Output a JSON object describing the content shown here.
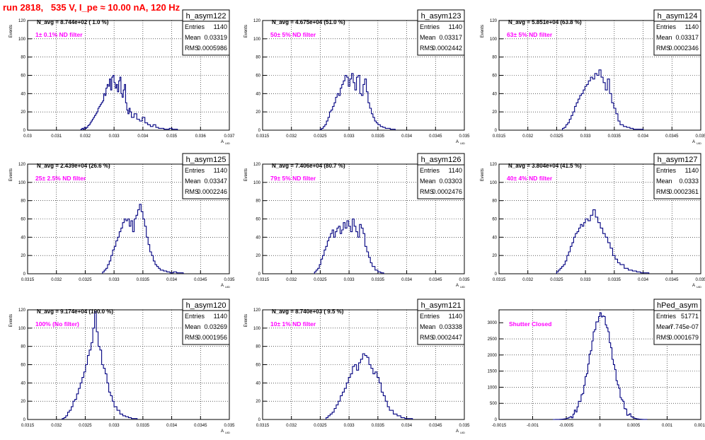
{
  "header": {
    "title": "run 2818,   535 V, I_pe ≈ 10.00 nA, 120 Hz"
  },
  "colors": {
    "histogram": "#000080",
    "annotation": "#ff00ff",
    "title": "#ff0000",
    "grid": "#000000"
  },
  "chart_data": [
    {
      "type": "histogram",
      "name": "h_asym122",
      "navg": "N_avg = 8.744e+02 ( 1.0 %)",
      "filter": "1± 0.1% ND filter",
      "stats": [
        [
          "Entries",
          "1140"
        ],
        [
          "Mean",
          "0.03319"
        ],
        [
          "RMS",
          "0.0005986"
        ]
      ],
      "ylabel": "Events",
      "xlabel": "A_UID",
      "xlim": [
        0.03,
        0.037
      ],
      "ylim": [
        0,
        120
      ],
      "xticks": [
        0.03,
        0.031,
        0.032,
        0.033,
        0.034,
        0.035,
        0.036,
        0.037
      ],
      "xtick_labels": [
        "0.03",
        "0.031",
        "0.032",
        "0.033",
        "0.034",
        "0.035",
        "0.036",
        "0.037"
      ],
      "yticks": [
        0,
        20,
        40,
        60,
        80,
        100,
        120
      ],
      "bins": [
        [
          0.03185,
          0.0326,
          [
            1,
            2,
            1,
            3,
            2,
            3,
            5,
            6,
            8,
            10,
            12,
            14,
            16,
            18,
            20,
            24,
            26,
            28,
            30
          ]
        ],
        [
          0.0326,
          0.0336,
          [
            32,
            40,
            38,
            46,
            50,
            48,
            56,
            44,
            58,
            60,
            52,
            46,
            50,
            42,
            54,
            58,
            40,
            36,
            44,
            50,
            30,
            22,
            18,
            24,
            20
          ]
        ],
        [
          0.0336,
          0.0352,
          [
            14,
            18,
            12,
            10,
            14,
            8,
            6,
            4,
            6,
            3,
            2,
            2,
            1,
            1,
            2,
            1,
            1
          ]
        ]
      ]
    },
    {
      "type": "histogram",
      "name": "h_asym123",
      "navg": "N_avg = 4.675e+04 (51.0 %)",
      "filter": "50± 5% ND filter",
      "stats": [
        [
          "Entries",
          "1140"
        ],
        [
          "Mean",
          "0.03317"
        ],
        [
          "RMS",
          "0.0002442"
        ]
      ],
      "ylabel": "Events",
      "xlabel": "A_UID",
      "xlim": [
        0.0315,
        0.035
      ],
      "ylim": [
        0,
        120
      ],
      "xticks": [
        0.0315,
        0.032,
        0.0325,
        0.033,
        0.0335,
        0.034,
        0.0345,
        0.035
      ],
      "xtick_labels": [
        "0.0315",
        "0.032",
        "0.0325",
        "0.033",
        "0.0335",
        "0.034",
        "0.0345",
        "0.035"
      ],
      "yticks": [
        0,
        20,
        40,
        60,
        80,
        100,
        120
      ],
      "bins": [
        [
          0.0325,
          0.0329,
          [
            1,
            2,
            4,
            6,
            10,
            14,
            20,
            22,
            26,
            30,
            36,
            40,
            38,
            46,
            50
          ]
        ],
        [
          0.0329,
          0.0335,
          [
            54,
            60,
            58,
            48,
            56,
            62,
            52,
            44,
            58,
            60,
            40,
            38,
            50,
            56,
            42,
            30,
            24,
            18,
            14,
            10,
            8
          ]
        ],
        [
          0.0335,
          0.0338,
          [
            6,
            4,
            3,
            2,
            2,
            1,
            1
          ]
        ]
      ]
    },
    {
      "type": "histogram",
      "name": "h_asym124",
      "navg": "N_avg = 5.851e+04 (63.8 %)",
      "filter": "63± 5% ND filter",
      "stats": [
        [
          "Entries",
          "1140"
        ],
        [
          "Mean",
          "0.03317"
        ],
        [
          "RMS",
          "0.0002346"
        ]
      ],
      "ylabel": "Events",
      "xlabel": "A_UID",
      "xlim": [
        0.0315,
        0.035
      ],
      "ylim": [
        0,
        120
      ],
      "xticks": [
        0.0315,
        0.032,
        0.0325,
        0.033,
        0.0335,
        0.034,
        0.0345,
        0.035
      ],
      "xtick_labels": [
        "0.0315",
        "0.032",
        "0.0325",
        "0.033",
        "0.0335",
        "0.034",
        "0.0345",
        "0.035"
      ],
      "yticks": [
        0,
        20,
        40,
        60,
        80,
        100,
        120
      ],
      "bins": [
        [
          0.0326,
          0.03305,
          [
            2,
            3,
            6,
            8,
            12,
            16,
            20,
            26,
            30,
            34,
            38,
            40,
            44,
            48,
            50
          ]
        ],
        [
          0.03305,
          0.0336,
          [
            54,
            58,
            56,
            62,
            60,
            66,
            58,
            52,
            44,
            56,
            40,
            30,
            24,
            18,
            10
          ]
        ],
        [
          0.0336,
          0.034,
          [
            6,
            4,
            3,
            2,
            1,
            1,
            1
          ]
        ]
      ]
    },
    {
      "type": "histogram",
      "name": "h_asym125",
      "navg": "N_avg = 2.439e+04 (26.6 %)",
      "filter": "25± 2.5% ND filter",
      "stats": [
        [
          "Entries",
          "1140"
        ],
        [
          "Mean",
          "0.03347"
        ],
        [
          "RMS",
          "0.0002246"
        ]
      ],
      "ylabel": "Events",
      "xlabel": "A_UID",
      "xlim": [
        0.0315,
        0.035
      ],
      "ylim": [
        0,
        120
      ],
      "xticks": [
        0.0315,
        0.032,
        0.0325,
        0.033,
        0.0335,
        0.034,
        0.0345,
        0.035
      ],
      "xtick_labels": [
        "0.0315",
        "0.032",
        "0.0325",
        "0.033",
        "0.0335",
        "0.034",
        "0.0345",
        "0.035"
      ],
      "yticks": [
        0,
        20,
        40,
        60,
        80,
        100,
        120
      ],
      "bins": [
        [
          0.0328,
          0.03335,
          [
            2,
            4,
            6,
            10,
            14,
            20,
            26,
            30,
            36,
            40,
            46,
            50,
            56,
            60,
            58,
            60,
            52,
            58,
            46
          ]
        ],
        [
          0.03335,
          0.0338,
          [
            60,
            64,
            70,
            76,
            68,
            60,
            52,
            40,
            32,
            24,
            20,
            14,
            10,
            8,
            6
          ]
        ],
        [
          0.0338,
          0.0342,
          [
            4,
            3,
            2,
            1,
            2,
            1,
            1
          ]
        ]
      ]
    },
    {
      "type": "histogram",
      "name": "h_asym126",
      "navg": "N_avg = 7.406e+04 (80.7 %)",
      "filter": "79± 5% ND filter",
      "stats": [
        [
          "Entries",
          "1140"
        ],
        [
          "Mean",
          "0.03303"
        ],
        [
          "RMS",
          "0.0002476"
        ]
      ],
      "ylabel": "Events",
      "xlabel": "A_UID",
      "xlim": [
        0.0315,
        0.035
      ],
      "ylim": [
        0,
        120
      ],
      "xticks": [
        0.0315,
        0.032,
        0.0325,
        0.033,
        0.0335,
        0.034,
        0.0345,
        0.035
      ],
      "xtick_labels": [
        "0.0315",
        "0.032",
        "0.0325",
        "0.033",
        "0.0335",
        "0.034",
        "0.0345",
        "0.035"
      ],
      "yticks": [
        0,
        20,
        40,
        60,
        80,
        100,
        120
      ],
      "bins": [
        [
          0.0324,
          0.0329,
          [
            2,
            4,
            6,
            10,
            16,
            20,
            26,
            30,
            36,
            40,
            44,
            48,
            40,
            46,
            50,
            52,
            44,
            48
          ]
        ],
        [
          0.0329,
          0.0334,
          [
            56,
            50,
            58,
            52,
            46,
            60,
            52,
            46,
            40,
            54,
            50,
            44,
            30,
            24,
            18,
            12
          ]
        ],
        [
          0.0334,
          0.0336,
          [
            8,
            4,
            2,
            1
          ]
        ]
      ]
    },
    {
      "type": "histogram",
      "name": "h_asym127",
      "navg": "N_avg = 3.804e+04 (41.5 %)",
      "filter": "40± 4% ND filter",
      "stats": [
        [
          "Entries",
          "1140"
        ],
        [
          "Mean",
          "0.0333"
        ],
        [
          "RMS",
          "0.0002361"
        ]
      ],
      "ylabel": "Events",
      "xlabel": "A_UID",
      "xlim": [
        0.0315,
        0.035
      ],
      "ylim": [
        0,
        120
      ],
      "xticks": [
        0.0315,
        0.032,
        0.0325,
        0.033,
        0.0335,
        0.034,
        0.0345,
        0.035
      ],
      "xtick_labels": [
        "0.0315",
        "0.032",
        "0.0325",
        "0.033",
        "0.0335",
        "0.034",
        "0.0345",
        "0.035"
      ],
      "yticks": [
        0,
        20,
        40,
        60,
        80,
        100,
        120
      ],
      "bins": [
        [
          0.0325,
          0.033,
          [
            2,
            4,
            6,
            8,
            10,
            14,
            20,
            24,
            30,
            34,
            40,
            44,
            46,
            50,
            54,
            52,
            56
          ]
        ],
        [
          0.033,
          0.0336,
          [
            60,
            58,
            64,
            70,
            62,
            56,
            50,
            44,
            40,
            34,
            28,
            20,
            16,
            12
          ]
        ],
        [
          0.0336,
          0.0341,
          [
            10,
            6,
            4,
            3,
            2,
            1,
            1
          ]
        ]
      ]
    },
    {
      "type": "histogram",
      "name": "h_asym120",
      "navg": "N_avg = 9.174e+04 (100.0 %)",
      "filter": "100% (No filter)",
      "stats": [
        [
          "Entries",
          "1140"
        ],
        [
          "Mean",
          "0.03269"
        ],
        [
          "RMS",
          "0.0001956"
        ]
      ],
      "ylabel": "Events",
      "xlabel": "A_UID",
      "xlim": [
        0.0315,
        0.035
      ],
      "ylim": [
        0,
        120
      ],
      "xticks": [
        0.0315,
        0.032,
        0.0325,
        0.033,
        0.0335,
        0.034,
        0.0345,
        0.035
      ],
      "xtick_labels": [
        "0.0315",
        "0.032",
        "0.0325",
        "0.033",
        "0.0335",
        "0.034",
        "0.0345",
        "0.035"
      ],
      "yticks": [
        0,
        20,
        40,
        60,
        80,
        100,
        120
      ],
      "bins": [
        [
          0.0321,
          0.0326,
          [
            1,
            2,
            4,
            8,
            10,
            14,
            20,
            22,
            28,
            34,
            40,
            46,
            52,
            60,
            70,
            76
          ]
        ],
        [
          0.0326,
          0.033,
          [
            84,
            100,
            118,
            96,
            80,
            76,
            60,
            56,
            50,
            40,
            30,
            26,
            20
          ]
        ],
        [
          0.033,
          0.0334,
          [
            14,
            10,
            6,
            4,
            3,
            2,
            1,
            1
          ]
        ]
      ]
    },
    {
      "type": "histogram",
      "name": "h_asym121",
      "navg": "N_avg = 8.740e+03 ( 9.5 %)",
      "filter": "10± 1% ND filter",
      "stats": [
        [
          "Entries",
          "1140"
        ],
        [
          "Mean",
          "0.03338"
        ],
        [
          "RMS",
          "0.0002447"
        ]
      ],
      "ylabel": "Events",
      "xlabel": "A_UID",
      "xlim": [
        0.0315,
        0.035
      ],
      "ylim": [
        0,
        120
      ],
      "xticks": [
        0.0315,
        0.032,
        0.0325,
        0.033,
        0.0335,
        0.034,
        0.0345,
        0.035
      ],
      "xtick_labels": [
        "0.0315",
        "0.032",
        "0.0325",
        "0.033",
        "0.0335",
        "0.034",
        "0.0345",
        "0.035"
      ],
      "yticks": [
        0,
        20,
        40,
        60,
        80,
        100,
        120
      ],
      "bins": [
        [
          0.0326,
          0.0332,
          [
            2,
            4,
            6,
            8,
            12,
            16,
            20,
            26,
            30,
            34,
            40,
            46,
            50,
            58,
            60,
            54,
            62
          ]
        ],
        [
          0.0332,
          0.0337,
          [
            66,
            72,
            70,
            68,
            60,
            56,
            50,
            52,
            46,
            40,
            30,
            26,
            20,
            14
          ]
        ],
        [
          0.0337,
          0.0341,
          [
            10,
            6,
            4,
            2,
            1,
            1
          ]
        ]
      ]
    },
    {
      "type": "histogram",
      "name": "hPed_asym",
      "navg": "",
      "filter": "Shutter Closed",
      "stats": [
        [
          "Entries",
          "51771"
        ],
        [
          "Mean",
          "-7.745e-07"
        ],
        [
          "RMS",
          "0.0001679"
        ]
      ],
      "ylabel": "",
      "xlabel": "",
      "xlim": [
        -0.0015,
        0.0015
      ],
      "ylim": [
        0,
        3400
      ],
      "xticks": [
        -0.0015,
        -0.001,
        -0.0005,
        0,
        0.0005,
        0.001,
        0.0015
      ],
      "xtick_labels": [
        "-0.0015",
        "-0.001",
        "-0.0005",
        "0",
        "0.0005",
        "0.001",
        "0.0015"
      ],
      "yticks": [
        0,
        500,
        1000,
        1500,
        2000,
        2500,
        3000
      ],
      "bins": "gaussian"
    }
  ]
}
